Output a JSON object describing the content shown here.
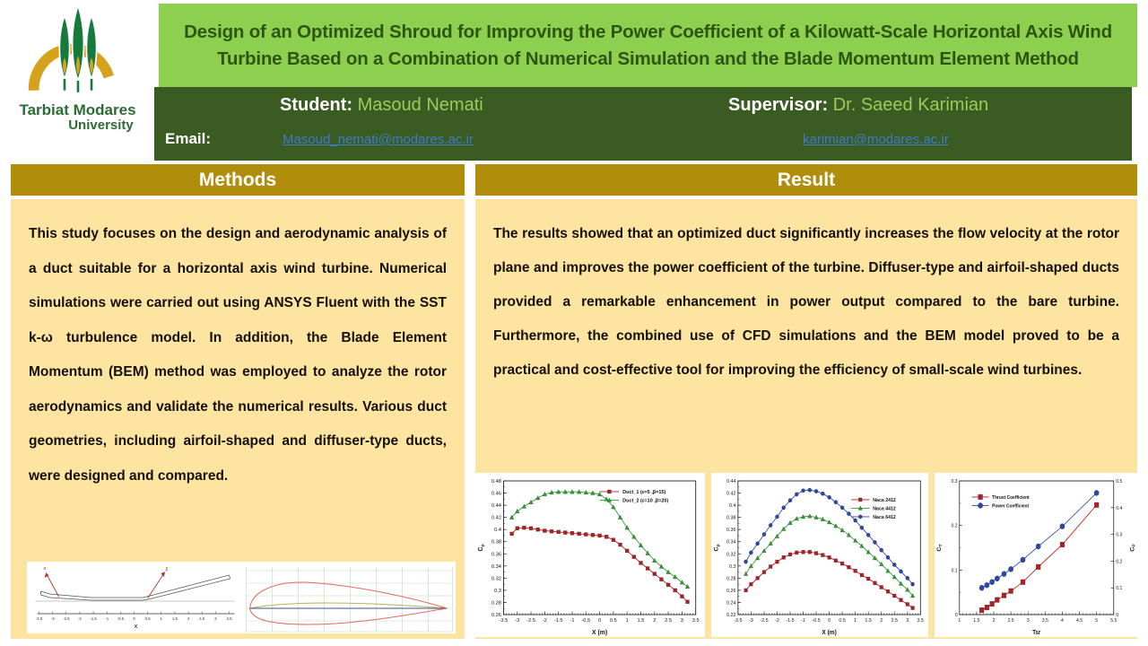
{
  "poster": {
    "title": "Design of an Optimized Shroud for Improving the Power Coefficient of a Kilowatt-Scale Horizontal Axis Wind Turbine Based on a Combination of Numerical Simulation and the Blade Momentum Element Method",
    "university": {
      "name_line1": "Tarbiat Modares",
      "name_line2": "University"
    },
    "people": {
      "student_label": "Student:",
      "student_name": " Masoud Nemati",
      "supervisor_label": "Supervisor:",
      "supervisor_name": " Dr. Saeed Karimian",
      "email_label": "Email:",
      "student_email": "Masoud_nemati@modares.ac.ir",
      "supervisor_email": "karimian@modares.ac.ir"
    },
    "sections": {
      "methods": {
        "heading": "Methods",
        "body": "This study focuses on the design and aerodynamic analysis of a duct suitable for a horizontal axis wind turbine. Numerical simulations were carried out using ANSYS Fluent with the SST k-ω turbulence model. In addition, the Blade Element Momentum (BEM) method was employed to analyze the rotor aerodynamics and validate the numerical results. Various duct geometries, including airfoil-shaped and diffuser-type ducts, were designed and compared."
      },
      "result": {
        "heading": "Result",
        "body": "The results showed that an optimized duct significantly increases the flow velocity at the rotor plane and improves the power coefficient of the turbine. Diffuser-type and airfoil-shaped ducts provided a remarkable enhancement in power output compared to the bare turbine. Furthermore, the combined use of CFD simulations and the BEM model proved to be a practical and cost-effective tool for improving the efficiency of small-scale wind turbines."
      }
    },
    "colors": {
      "light_green": "#8dd04f",
      "dark_green_band": "#3a5b21",
      "title_text_green": "#2f5514",
      "gold_header": "#b08e0b",
      "pale_yellow": "#fde5a1",
      "link_blue": "#3c7ac8"
    },
    "methods_figure": {
      "duct": {
        "xlabel": "X",
        "xticks": [
          -3.5,
          -3,
          -2.5,
          -2,
          -1.5,
          -1,
          -0.5,
          0,
          0.5,
          1,
          1.5,
          2,
          2.5,
          3,
          3.5
        ],
        "arrow_labels": [
          "α",
          "β"
        ]
      }
    }
  },
  "chart_data": [
    {
      "type": "line",
      "xlabel": "X (m)",
      "ylabel": {
        "t": "C",
        "s": "p"
      },
      "xlim": [
        -3.5,
        3.5
      ],
      "xstep": 0.5,
      "ylim": [
        0.26,
        0.48
      ],
      "ystep": 0.02,
      "legend": [
        0.5,
        0.04
      ],
      "msize": 2.0,
      "x": [
        -3.2,
        -3,
        -2.75,
        -2.5,
        -2.25,
        -2,
        -1.75,
        -1.5,
        -1.25,
        -1,
        -0.75,
        -0.5,
        -0.25,
        0,
        0.25,
        0.5,
        0.75,
        1,
        1.25,
        1.5,
        1.75,
        2,
        2.25,
        2.5,
        2.75,
        3,
        3.2
      ],
      "series": [
        {
          "name": "Duct_1 (ε=5 ,β=15)",
          "color": "#b21e23",
          "marker": "square",
          "y": [
            0.393,
            0.402,
            0.403,
            0.402,
            0.4,
            0.398,
            0.397,
            0.396,
            0.395,
            0.394,
            0.393,
            0.392,
            0.391,
            0.39,
            0.388,
            0.383,
            0.375,
            0.365,
            0.355,
            0.345,
            0.336,
            0.327,
            0.318,
            0.309,
            0.3,
            0.29,
            0.281
          ]
        },
        {
          "name": "Duct_2 (ε=10 ,β=20)",
          "color": "#2ea02e",
          "marker": "triangle",
          "y": [
            0.42,
            0.43,
            0.438,
            0.445,
            0.452,
            0.458,
            0.461,
            0.462,
            0.462,
            0.462,
            0.462,
            0.461,
            0.46,
            0.458,
            0.45,
            0.437,
            0.42,
            0.403,
            0.388,
            0.374,
            0.361,
            0.349,
            0.339,
            0.33,
            0.322,
            0.313,
            0.306
          ]
        }
      ]
    },
    {
      "type": "line",
      "xlabel": "X (m)",
      "ylabel": {
        "t": "C",
        "s": "p"
      },
      "xlim": [
        -3.5,
        3.5
      ],
      "xstep": 0.5,
      "ylim": [
        0.22,
        0.44
      ],
      "ystep": 0.02,
      "legend": [
        0.62,
        0.1
      ],
      "msize": 2.0,
      "x": [
        -3.2,
        -3,
        -2.75,
        -2.5,
        -2.25,
        -2,
        -1.75,
        -1.5,
        -1.25,
        -1,
        -0.75,
        -0.5,
        -0.25,
        0,
        0.25,
        0.5,
        0.75,
        1,
        1.25,
        1.5,
        1.75,
        2,
        2.25,
        2.5,
        2.75,
        3,
        3.2
      ],
      "series": [
        {
          "name": "Naca 2412",
          "color": "#b21e23",
          "marker": "square",
          "y": [
            0.26,
            0.27,
            0.28,
            0.29,
            0.299,
            0.307,
            0.314,
            0.319,
            0.322,
            0.323,
            0.323,
            0.321,
            0.318,
            0.314,
            0.309,
            0.304,
            0.298,
            0.292,
            0.285,
            0.279,
            0.272,
            0.265,
            0.258,
            0.251,
            0.244,
            0.237,
            0.231
          ]
        },
        {
          "name": "Naca 4412",
          "color": "#2ea02e",
          "marker": "triangle",
          "y": [
            0.287,
            0.3,
            0.313,
            0.325,
            0.337,
            0.349,
            0.361,
            0.371,
            0.378,
            0.381,
            0.382,
            0.38,
            0.377,
            0.372,
            0.366,
            0.359,
            0.351,
            0.342,
            0.333,
            0.323,
            0.313,
            0.303,
            0.292,
            0.282,
            0.271,
            0.261,
            0.251
          ]
        },
        {
          "name": "Naca 6412",
          "color": "#2b49a8",
          "marker": "circle",
          "y": [
            0.307,
            0.322,
            0.337,
            0.352,
            0.367,
            0.381,
            0.396,
            0.408,
            0.418,
            0.424,
            0.425,
            0.423,
            0.419,
            0.413,
            0.405,
            0.396,
            0.386,
            0.375,
            0.363,
            0.351,
            0.339,
            0.326,
            0.314,
            0.302,
            0.291,
            0.28,
            0.27
          ]
        }
      ]
    },
    {
      "type": "line",
      "xlabel": "Tsr",
      "ylabel": {
        "t": "C",
        "s": "T"
      },
      "xlim": [
        1,
        5.5
      ],
      "xstep": 0.5,
      "ylim": [
        0,
        0.3
      ],
      "ystep": 0.1,
      "y2": {
        "lim": [
          0,
          0.5
        ],
        "step": 0.1,
        "label": {
          "t": "C",
          "s": "P"
        }
      },
      "legend": [
        0.08,
        0.08
      ],
      "msize": 2.8,
      "x": [
        1.65,
        1.8,
        1.95,
        2.1,
        2.3,
        2.5,
        2.85,
        3.3,
        4,
        5
      ],
      "series": [
        {
          "name": "Thrust Coefficient",
          "color": "#b21e23",
          "marker": "square",
          "y": [
            0.01,
            0.016,
            0.024,
            0.033,
            0.043,
            0.053,
            0.073,
            0.107,
            0.157,
            0.246
          ]
        },
        {
          "name": "Power Coefficient",
          "color": "#2b49a8",
          "marker": "circle",
          "axis": "y2",
          "y": [
            0.1,
            0.11,
            0.122,
            0.135,
            0.152,
            0.17,
            0.205,
            0.255,
            0.33,
            0.455
          ]
        }
      ]
    }
  ]
}
